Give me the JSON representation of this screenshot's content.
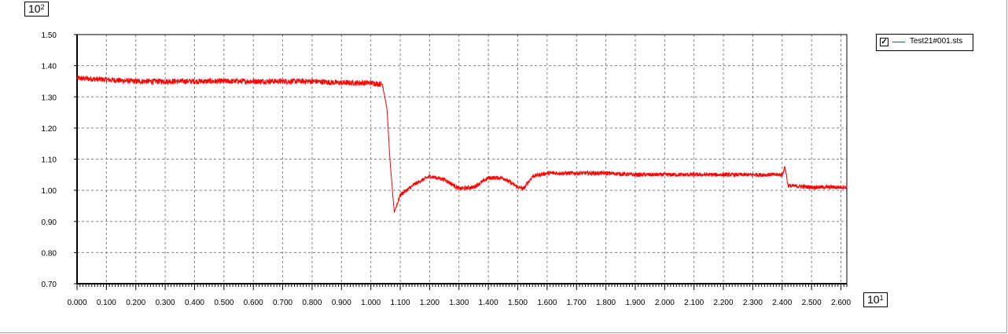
{
  "axis_exponents": {
    "y": "10",
    "y_power": "2",
    "x": "10",
    "x_power": "1"
  },
  "legend": {
    "checked": true,
    "check_mark": "✓",
    "label": "Test21#001.sts",
    "color": "#ff0000"
  },
  "chart_data": {
    "type": "line",
    "title": "",
    "xlabel": "",
    "ylabel": "",
    "xlim": [
      0.0,
      2.62
    ],
    "ylim": [
      0.7,
      1.5
    ],
    "grid": true,
    "legend_position": "top-right",
    "x_ticks": [
      "0.000",
      "0.100",
      "0.200",
      "0.300",
      "0.400",
      "0.500",
      "0.600",
      "0.700",
      "0.800",
      "0.900",
      "1.000",
      "1.100",
      "1.200",
      "1.300",
      "1.400",
      "1.500",
      "1.600",
      "1.700",
      "1.800",
      "1.900",
      "2.000",
      "2.100",
      "2.200",
      "2.300",
      "2.400",
      "2.500",
      "2.600"
    ],
    "y_ticks": [
      "0.70",
      "0.80",
      "0.90",
      "1.00",
      "1.10",
      "1.20",
      "1.30",
      "1.40",
      "1.50"
    ],
    "series": [
      {
        "name": "Test21#001.sts",
        "color": "#ff0000",
        "x": [
          0.0,
          0.1,
          0.2,
          0.3,
          0.4,
          0.5,
          0.6,
          0.7,
          0.8,
          0.9,
          1.0,
          1.04,
          1.055,
          1.065,
          1.075,
          1.08,
          1.1,
          1.15,
          1.2,
          1.25,
          1.3,
          1.35,
          1.4,
          1.45,
          1.5,
          1.52,
          1.55,
          1.6,
          1.7,
          1.8,
          1.9,
          2.0,
          2.1,
          2.2,
          2.3,
          2.4,
          2.41,
          2.42,
          2.5,
          2.62
        ],
        "y": [
          1.36,
          1.355,
          1.35,
          1.35,
          1.35,
          1.35,
          1.35,
          1.35,
          1.35,
          1.345,
          1.345,
          1.34,
          1.26,
          1.1,
          0.98,
          0.93,
          0.985,
          1.02,
          1.045,
          1.035,
          1.005,
          1.01,
          1.04,
          1.04,
          1.01,
          1.005,
          1.045,
          1.055,
          1.055,
          1.055,
          1.05,
          1.05,
          1.05,
          1.05,
          1.05,
          1.05,
          1.075,
          1.015,
          1.01,
          1.01
        ]
      }
    ]
  }
}
